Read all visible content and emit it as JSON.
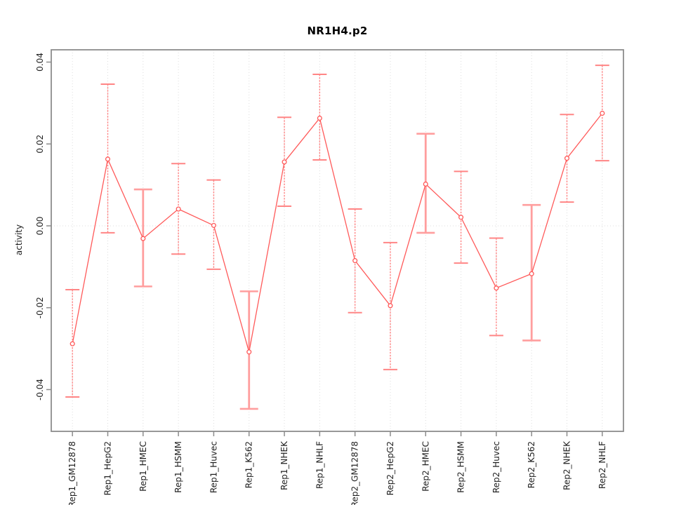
{
  "chart_data": {
    "type": "line",
    "title": "NR1H4.p2",
    "xlabel": "",
    "ylabel": "activity",
    "legend": "none",
    "grid": {
      "vertical_dotted_per_category": true,
      "zero_line_dotted": true
    },
    "categories": [
      "Rep1_GM12878",
      "Rep1_HepG2",
      "Rep1_HMEC",
      "Rep1_HSMM",
      "Rep1_Huvec",
      "Rep1_K562",
      "Rep1_NHEK",
      "Rep1_NHLF",
      "Rep2_GM12878",
      "Rep2_HepG2",
      "Rep2_HMEC",
      "Rep2_HSMM",
      "Rep2_Huvec",
      "Rep2_K562",
      "Rep2_NHEK",
      "Rep2_NHLF"
    ],
    "series": [
      {
        "name": "activity",
        "marker": "open-circle",
        "values": [
          -0.0288,
          0.0163,
          -0.0031,
          0.0041,
          0.0001,
          -0.0308,
          0.0156,
          0.0263,
          -0.0085,
          -0.0195,
          0.0102,
          0.0021,
          -0.0152,
          -0.0117,
          0.0165,
          0.0275
        ],
        "error_low": [
          -0.0418,
          -0.0017,
          -0.0148,
          -0.0069,
          -0.0106,
          -0.0447,
          0.0048,
          0.0161,
          -0.0212,
          -0.0351,
          -0.0017,
          -0.0091,
          -0.0268,
          -0.028,
          0.0058,
          0.0159
        ],
        "error_high": [
          -0.0156,
          0.0346,
          0.0089,
          0.0152,
          0.0112,
          -0.016,
          0.0265,
          0.037,
          0.0041,
          -0.0041,
          0.0225,
          0.0133,
          -0.003,
          0.0051,
          0.0272,
          0.0392
        ]
      }
    ],
    "thick_error_bar_categories": [
      "Rep1_HMEC",
      "Rep1_K562",
      "Rep2_HMEC",
      "Rep2_K562"
    ],
    "ytick_values": [
      0.04,
      0.02,
      0.0,
      -0.02,
      -0.04
    ],
    "ytick_labels": [
      "0.04",
      "0.02",
      "0.00",
      "-0.02",
      "-0.04"
    ],
    "ylim": [
      -0.0502,
      0.043
    ],
    "colors": {
      "line": "#ff5a5a",
      "marker": "#ff5a5a",
      "error_bar": "#ff8585",
      "error_bar_thick": "#ff9e9e",
      "grid": "#dddddd",
      "axis_box": "#8c8c8c",
      "tick_text": "#1f1f1f",
      "title_text": "#000000"
    }
  }
}
